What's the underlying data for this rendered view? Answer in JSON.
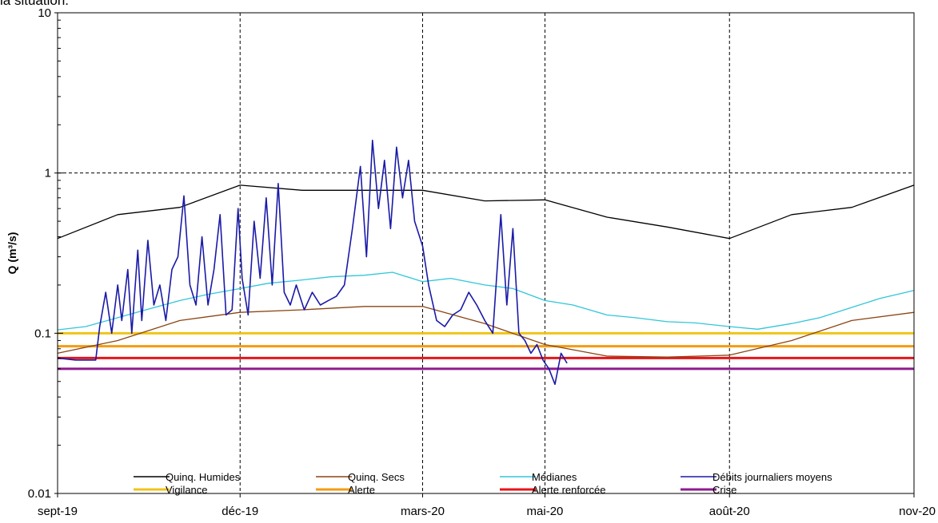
{
  "top_caption": "la situation.",
  "chart_data": {
    "type": "line",
    "title": "",
    "xlabel": "",
    "ylabel": "Q (m³/s)",
    "y_scale": "log",
    "ylim": [
      0.01,
      10
    ],
    "y_ticks": [
      {
        "value": 0.01,
        "label": "0.01"
      },
      {
        "value": 0.1,
        "label": "0.1"
      },
      {
        "value": 1,
        "label": "1"
      },
      {
        "value": 10,
        "label": "10"
      }
    ],
    "xlim": [
      "2019-09-01",
      "2020-11-01"
    ],
    "x_ticks": [
      {
        "date": "2019-09-01",
        "label": "sept-19"
      },
      {
        "date": "2019-12-01",
        "label": "déc-19"
      },
      {
        "date": "2020-03-01",
        "label": "mars-20"
      },
      {
        "date": "2020-05-01",
        "label": "mai-20"
      },
      {
        "date": "2020-08-01",
        "label": "août-20"
      },
      {
        "date": "2020-11-01",
        "label": "nov-20"
      }
    ],
    "grid": "dashed vertical lines at each month tick; dashed horizontal lines at 1 and 10",
    "legend_position": "bottom, inside plot area, 4 columns",
    "series": [
      {
        "name": "Quinq. Humides",
        "color": "#000000",
        "x": [
          "2019-09-01",
          "2019-10-01",
          "2019-11-01",
          "2019-12-01",
          "2020-01-01",
          "2020-02-01",
          "2020-03-01",
          "2020-04-01",
          "2020-05-01",
          "2020-06-01",
          "2020-07-01",
          "2020-08-01",
          "2020-09-01",
          "2020-10-01",
          "2020-11-01"
        ],
        "y": [
          0.39,
          0.55,
          0.61,
          0.84,
          0.78,
          0.78,
          0.78,
          0.67,
          0.68,
          0.53,
          0.46,
          0.39,
          0.55,
          0.61,
          0.84
        ]
      },
      {
        "name": "Quinq. Secs",
        "color": "#8b4513",
        "x": [
          "2019-09-01",
          "2019-10-01",
          "2019-11-01",
          "2019-12-01",
          "2020-01-01",
          "2020-02-01",
          "2020-03-01",
          "2020-04-01",
          "2020-05-01",
          "2020-06-01",
          "2020-07-01",
          "2020-08-01",
          "2020-09-01",
          "2020-10-01",
          "2020-11-01"
        ],
        "y": [
          0.075,
          0.09,
          0.12,
          0.135,
          0.14,
          0.147,
          0.147,
          0.115,
          0.085,
          0.072,
          0.071,
          0.073,
          0.09,
          0.12,
          0.135
        ]
      },
      {
        "name": "Médianes",
        "color": "#31c6d9",
        "x": [
          "2019-09-01",
          "2019-09-15",
          "2019-10-01",
          "2019-10-15",
          "2019-11-01",
          "2019-11-15",
          "2019-12-01",
          "2019-12-15",
          "2020-01-01",
          "2020-01-15",
          "2020-02-01",
          "2020-02-15",
          "2020-03-01",
          "2020-03-15",
          "2020-04-01",
          "2020-04-15",
          "2020-05-01",
          "2020-05-15",
          "2020-06-01",
          "2020-06-15",
          "2020-07-01",
          "2020-07-15",
          "2020-08-01",
          "2020-08-15",
          "2020-09-01",
          "2020-09-15",
          "2020-10-01",
          "2020-10-15",
          "2020-11-01"
        ],
        "y": [
          0.105,
          0.11,
          0.125,
          0.14,
          0.16,
          0.175,
          0.19,
          0.205,
          0.215,
          0.225,
          0.23,
          0.24,
          0.21,
          0.22,
          0.2,
          0.19,
          0.16,
          0.15,
          0.13,
          0.125,
          0.118,
          0.116,
          0.11,
          0.106,
          0.115,
          0.125,
          0.145,
          0.165,
          0.185
        ]
      },
      {
        "name": "Débits journaliers moyens",
        "color": "#1a1aa8",
        "x": [
          "2019-09-01",
          "2019-09-10",
          "2019-09-20",
          "2019-09-22",
          "2019-09-25",
          "2019-09-28",
          "2019-10-01",
          "2019-10-03",
          "2019-10-06",
          "2019-10-08",
          "2019-10-11",
          "2019-10-13",
          "2019-10-16",
          "2019-10-19",
          "2019-10-22",
          "2019-10-25",
          "2019-10-28",
          "2019-10-31",
          "2019-11-03",
          "2019-11-06",
          "2019-11-09",
          "2019-11-12",
          "2019-11-15",
          "2019-11-18",
          "2019-11-21",
          "2019-11-24",
          "2019-11-27",
          "2019-11-30",
          "2019-12-02",
          "2019-12-05",
          "2019-12-08",
          "2019-12-11",
          "2019-12-14",
          "2019-12-17",
          "2019-12-20",
          "2019-12-23",
          "2019-12-26",
          "2019-12-29",
          "2020-01-02",
          "2020-01-06",
          "2020-01-10",
          "2020-01-14",
          "2020-01-18",
          "2020-01-22",
          "2020-01-26",
          "2020-01-30",
          "2020-02-02",
          "2020-02-05",
          "2020-02-08",
          "2020-02-11",
          "2020-02-14",
          "2020-02-17",
          "2020-02-20",
          "2020-02-23",
          "2020-02-26",
          "2020-03-01",
          "2020-03-04",
          "2020-03-08",
          "2020-03-12",
          "2020-03-16",
          "2020-03-20",
          "2020-03-24",
          "2020-03-28",
          "2020-04-01",
          "2020-04-05",
          "2020-04-09",
          "2020-04-12",
          "2020-04-15",
          "2020-04-18",
          "2020-04-21",
          "2020-04-24",
          "2020-04-27",
          "2020-04-30",
          "2020-05-03",
          "2020-05-06",
          "2020-05-09",
          "2020-05-12"
        ],
        "y": [
          0.07,
          0.068,
          0.068,
          0.11,
          0.18,
          0.1,
          0.2,
          0.12,
          0.25,
          0.1,
          0.33,
          0.12,
          0.38,
          0.15,
          0.2,
          0.12,
          0.25,
          0.3,
          0.72,
          0.2,
          0.15,
          0.4,
          0.15,
          0.25,
          0.55,
          0.13,
          0.14,
          0.6,
          0.22,
          0.13,
          0.5,
          0.22,
          0.7,
          0.2,
          0.86,
          0.18,
          0.15,
          0.2,
          0.14,
          0.18,
          0.15,
          0.16,
          0.17,
          0.2,
          0.45,
          1.1,
          0.3,
          1.6,
          0.6,
          1.2,
          0.45,
          1.45,
          0.7,
          1.2,
          0.5,
          0.35,
          0.2,
          0.12,
          0.11,
          0.13,
          0.14,
          0.18,
          0.15,
          0.12,
          0.1,
          0.55,
          0.15,
          0.45,
          0.1,
          0.09,
          0.075,
          0.085,
          0.068,
          0.06,
          0.048,
          0.075,
          0.065
        ]
      },
      {
        "name": "Vigilance",
        "color": "#f0c419",
        "threshold": 0.1
      },
      {
        "name": "Alerte",
        "color": "#f39c12",
        "threshold": 0.083
      },
      {
        "name": "Alerte renforcée",
        "color": "#e8141a",
        "threshold": 0.07
      },
      {
        "name": "Crise",
        "color": "#8e1b8e",
        "threshold": 0.06
      }
    ]
  }
}
